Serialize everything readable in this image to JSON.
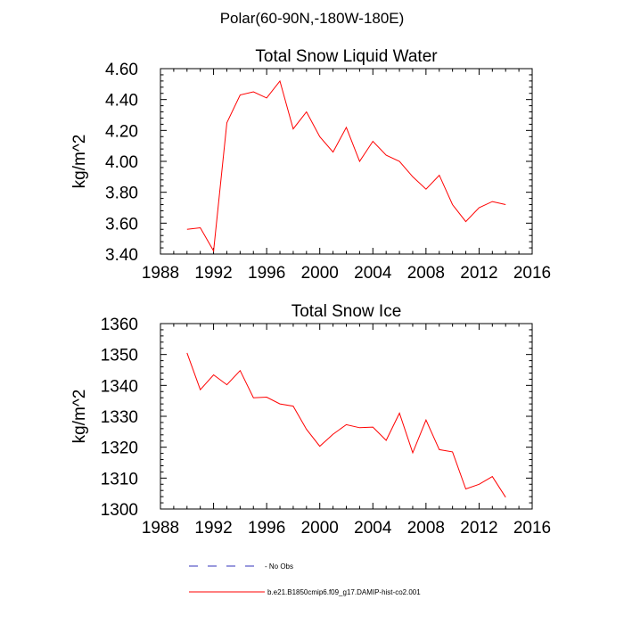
{
  "figure_title": "Polar(60-90N,-180W-180E)",
  "chart_data": [
    {
      "type": "line",
      "title": "Total Snow Liquid Water",
      "xlabel": "",
      "ylabel": "kg/m^2",
      "xlim": [
        1988,
        2016
      ],
      "ylim": [
        3.4,
        4.6
      ],
      "xticks": [
        1988,
        1992,
        1996,
        2000,
        2004,
        2008,
        2012,
        2016
      ],
      "yticks": [
        3.4,
        3.6,
        3.8,
        4.0,
        4.2,
        4.4,
        4.6
      ],
      "ytick_labels": [
        "3.40",
        "3.60",
        "3.80",
        "4.00",
        "4.20",
        "4.40",
        "4.60"
      ],
      "series": [
        {
          "name": "b.e21.B1850cmip6.f09_g17.DAMIP-hist-co2.001",
          "color": "#ff0000",
          "x": [
            1990,
            1991,
            1992,
            1993,
            1994,
            1995,
            1996,
            1997,
            1998,
            1999,
            2000,
            2001,
            2002,
            2003,
            2004,
            2005,
            2006,
            2007,
            2008,
            2009,
            2010,
            2011,
            2012,
            2013,
            2014
          ],
          "y": [
            3.56,
            3.57,
            3.42,
            4.25,
            4.43,
            4.45,
            4.41,
            4.52,
            4.21,
            4.32,
            4.16,
            4.06,
            4.22,
            4.0,
            4.13,
            4.04,
            4.0,
            3.9,
            3.82,
            3.91,
            3.72,
            3.61,
            3.7,
            3.74,
            3.72
          ]
        }
      ]
    },
    {
      "type": "line",
      "title": "Total Snow Ice",
      "xlabel": "",
      "ylabel": "kg/m^2",
      "xlim": [
        1988,
        2016
      ],
      "ylim": [
        1300,
        1360
      ],
      "xticks": [
        1988,
        1992,
        1996,
        2000,
        2004,
        2008,
        2012,
        2016
      ],
      "yticks": [
        1300,
        1310,
        1320,
        1330,
        1340,
        1350,
        1360
      ],
      "ytick_labels": [
        "1300",
        "1310",
        "1320",
        "1330",
        "1340",
        "1350",
        "1360"
      ],
      "series": [
        {
          "name": "b.e21.B1850cmip6.f09_g17.DAMIP-hist-co2.001",
          "color": "#ff0000",
          "x": [
            1990,
            1991,
            1992,
            1993,
            1994,
            1995,
            1996,
            1997,
            1998,
            1999,
            2000,
            2001,
            2002,
            2003,
            2004,
            2005,
            2006,
            2007,
            2008,
            2009,
            2010,
            2011,
            2012,
            2013,
            2014
          ],
          "y": [
            1350.5,
            1338.6,
            1343.4,
            1340.2,
            1344.8,
            1336.0,
            1336.2,
            1334.0,
            1333.3,
            1325.8,
            1320.3,
            1324.2,
            1327.3,
            1326.3,
            1326.5,
            1322.2,
            1331.0,
            1318.2,
            1328.8,
            1319.2,
            1318.5,
            1306.5,
            1308.0,
            1310.5,
            1303.8
          ]
        }
      ]
    }
  ],
  "legend": [
    {
      "label": "No Obs",
      "color": "#3333bb",
      "dash": true
    },
    {
      "label": "b.e21.B1850cmip6.f09_g17.DAMIP-hist-co2.001",
      "color": "#ff0000",
      "dash": false
    }
  ]
}
